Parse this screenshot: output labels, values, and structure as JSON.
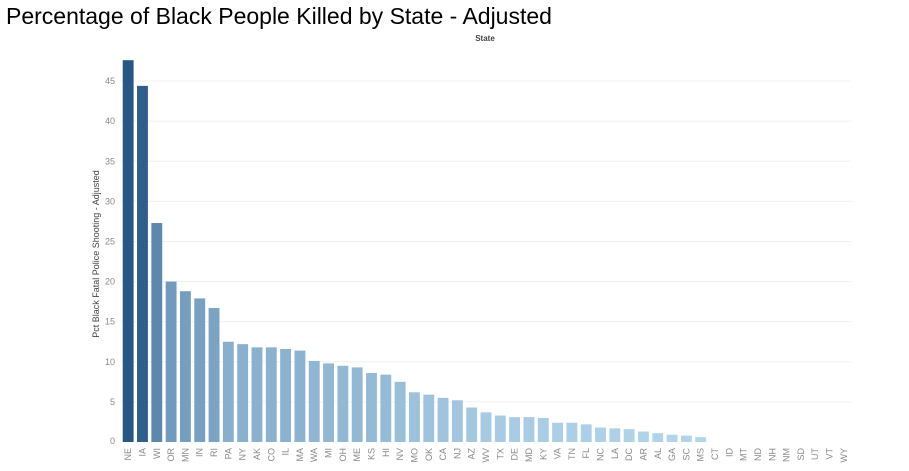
{
  "chart_data": {
    "type": "bar",
    "title": "Percentage of Black People Killed by State - Adjusted",
    "xlabel": "State",
    "ylabel": "Pct Black Fatal Police Shooting - Adjusted",
    "ylim": [
      0,
      47.5
    ],
    "yticks": [
      0,
      5,
      10,
      15,
      20,
      25,
      30,
      35,
      40,
      45
    ],
    "grid": true,
    "categories": [
      "NE",
      "IA",
      "WI",
      "OR",
      "MN",
      "IN",
      "RI",
      "PA",
      "NY",
      "AK",
      "CO",
      "IL",
      "MA",
      "WA",
      "MI",
      "OH",
      "ME",
      "KS",
      "HI",
      "NV",
      "MO",
      "OK",
      "CA",
      "NJ",
      "AZ",
      "WV",
      "TX",
      "DE",
      "MD",
      "KY",
      "VA",
      "TN",
      "FL",
      "NC",
      "LA",
      "DC",
      "AR",
      "AL",
      "GA",
      "SC",
      "MS",
      "CT",
      "ID",
      "MT",
      "ND",
      "NH",
      "NM",
      "SD",
      "UT",
      "VT",
      "WY"
    ],
    "values": [
      47.6,
      44.4,
      27.3,
      20.0,
      18.8,
      17.9,
      16.7,
      12.5,
      12.2,
      11.8,
      11.8,
      11.6,
      11.4,
      10.1,
      9.8,
      9.5,
      9.3,
      8.6,
      8.4,
      7.5,
      6.2,
      5.9,
      5.5,
      5.2,
      4.3,
      3.7,
      3.3,
      3.1,
      3.1,
      3.0,
      2.4,
      2.4,
      2.2,
      1.8,
      1.7,
      1.6,
      1.3,
      1.1,
      0.9,
      0.8,
      0.6,
      0,
      0,
      0,
      0,
      0,
      0,
      0,
      0,
      0,
      0
    ],
    "colors": {
      "low": "#b7d9ee",
      "high": "#275685"
    }
  }
}
